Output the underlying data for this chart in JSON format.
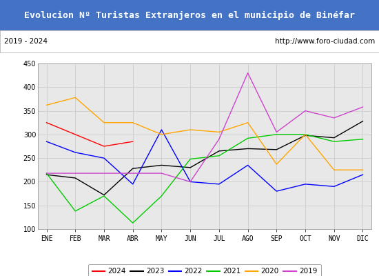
{
  "title": "Evolucion Nº Turistas Extranjeros en el municipio de Binéfar",
  "subtitle_left": "2019 - 2024",
  "subtitle_right": "http://www.foro-ciudad.com",
  "title_bg_color": "#4472c4",
  "title_text_color": "#ffffff",
  "subtitle_bg_color": "#ffffff",
  "subtitle_text_color": "#000000",
  "plot_bg_color": "#e8e8e8",
  "months": [
    "ENE",
    "FEB",
    "MAR",
    "ABR",
    "MAY",
    "JUN",
    "JUL",
    "AGO",
    "SEP",
    "OCT",
    "NOV",
    "DIC"
  ],
  "ylim": [
    100,
    450
  ],
  "yticks": [
    100,
    150,
    200,
    250,
    300,
    350,
    400,
    450
  ],
  "series": {
    "2024": {
      "color": "#ff0000",
      "values": [
        325,
        300,
        275,
        285,
        null,
        null,
        null,
        null,
        null,
        null,
        null,
        null
      ]
    },
    "2023": {
      "color": "#000000",
      "values": [
        215,
        208,
        172,
        228,
        235,
        230,
        265,
        270,
        268,
        298,
        293,
        328
      ]
    },
    "2022": {
      "color": "#0000ff",
      "values": [
        285,
        262,
        250,
        195,
        310,
        200,
        195,
        235,
        180,
        195,
        190,
        215
      ]
    },
    "2021": {
      "color": "#00cc00",
      "values": [
        218,
        138,
        170,
        113,
        170,
        248,
        255,
        292,
        300,
        300,
        285,
        290
      ]
    },
    "2020": {
      "color": "#ffa500",
      "values": [
        362,
        378,
        325,
        325,
        300,
        310,
        305,
        325,
        237,
        300,
        225,
        225
      ]
    },
    "2019": {
      "color": "#cc44cc",
      "values": [
        218,
        218,
        218,
        218,
        218,
        200,
        290,
        430,
        305,
        350,
        335,
        358
      ]
    }
  },
  "legend_order": [
    "2024",
    "2023",
    "2022",
    "2021",
    "2020",
    "2019"
  ]
}
